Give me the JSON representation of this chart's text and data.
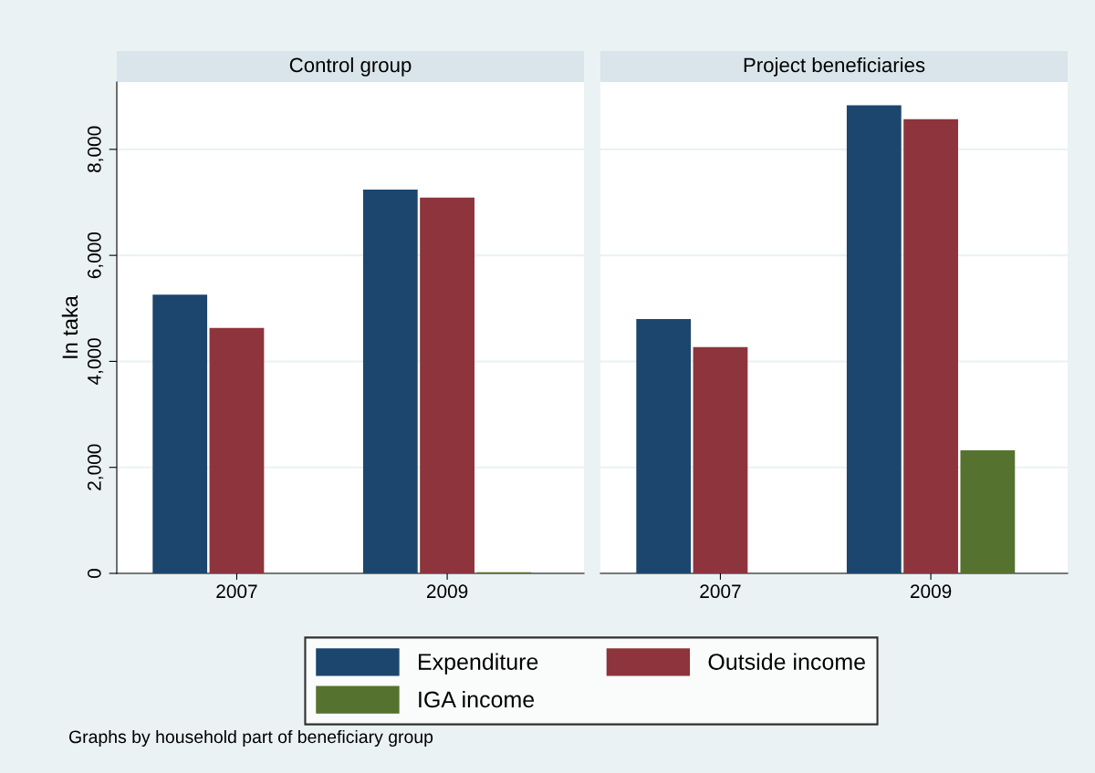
{
  "chart_data": [
    {
      "type": "bar",
      "title": "Control group",
      "ylabel": "In taka",
      "categories": [
        "2007",
        "2009"
      ],
      "series": [
        {
          "name": "Expenditure",
          "color": "#1c466d",
          "values": [
            5260,
            7240
          ]
        },
        {
          "name": "Outside income",
          "color": "#8e343c",
          "values": [
            4630,
            7090
          ]
        },
        {
          "name": "IGA income",
          "color": "#56722f",
          "values": [
            0,
            20
          ]
        }
      ],
      "ylim": [
        0,
        9270
      ],
      "yticks": [
        0,
        {
          "value": 2000,
          "label": "2,000"
        },
        {
          "value": 4000,
          "label": "4,000"
        },
        {
          "value": 6000,
          "label": "6,000"
        },
        {
          "value": 8000,
          "label": "8,000"
        }
      ],
      "grid": "y",
      "legend": "bottom",
      "annotations": [
        "Graphs by household part of beneficiary group"
      ]
    },
    {
      "type": "bar",
      "title": "Project beneficiaries",
      "categories": [
        "2007",
        "2009"
      ],
      "series": [
        {
          "color": "#1c466d",
          "values": [
            4800,
            8830
          ]
        },
        {
          "color": "#8e343c",
          "values": [
            4270,
            8570
          ]
        },
        {
          "color": "#56722f",
          "values": [
            0,
            2320
          ]
        }
      ],
      "ylim": [
        0,
        9270
      ],
      "yticks": [
        {
          "value": 0,
          "label": null
        },
        {
          "value": 2000,
          "label": null
        },
        {
          "value": 4000,
          "label": null
        },
        {
          "value": 6000,
          "label": null
        },
        {
          "value": 8000,
          "label": null
        }
      ],
      "grid": "y",
      "tick_labels": "x"
    }
  ]
}
